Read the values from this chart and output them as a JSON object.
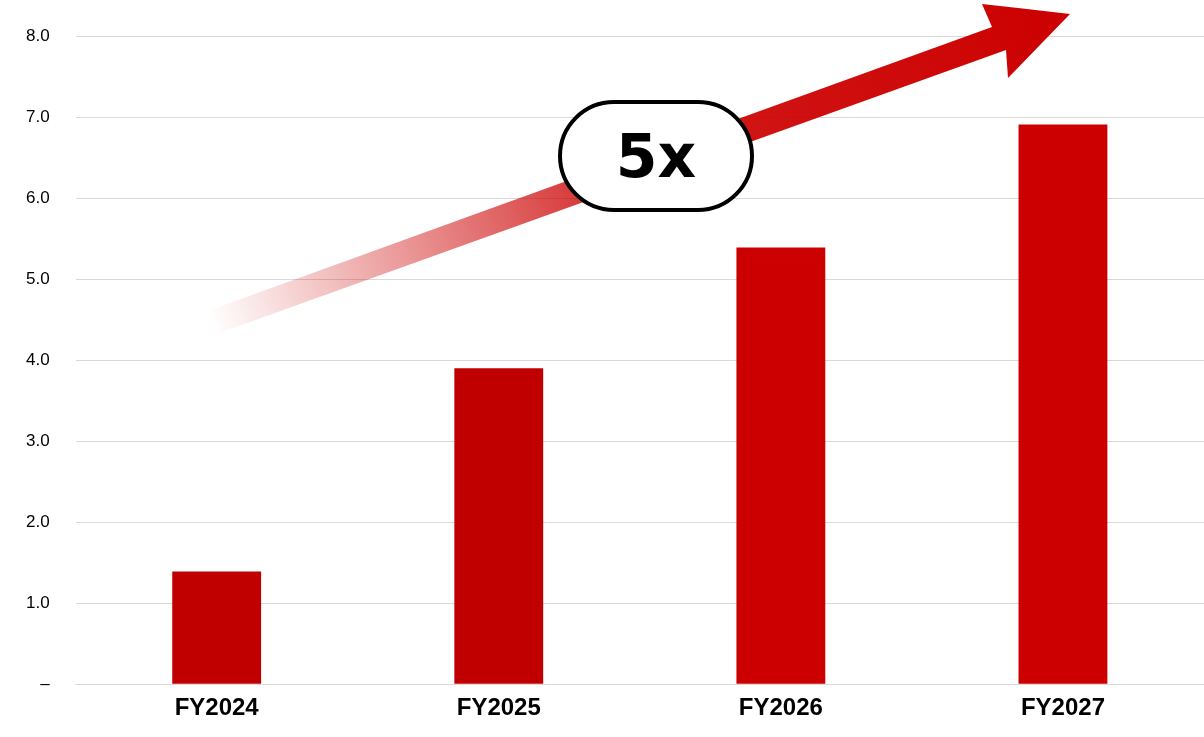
{
  "chart_data": {
    "type": "bar",
    "categories": [
      "FY2024",
      "FY2025",
      "FY2026",
      "FY2027"
    ],
    "values": [
      1.39,
      3.9,
      5.39,
      6.91
    ],
    "colors": [
      "#c00000",
      "#c00000",
      "#cc0000",
      "#cc0000"
    ],
    "ylim": [
      0,
      8
    ],
    "yticks": [
      {
        "value": 0,
        "label": "–"
      },
      {
        "value": 1,
        "label": "1.0"
      },
      {
        "value": 2,
        "label": "2.0"
      },
      {
        "value": 3,
        "label": "3.0"
      },
      {
        "value": 4,
        "label": "4.0"
      },
      {
        "value": 5,
        "label": "5.0"
      },
      {
        "value": 6,
        "label": "6.0"
      },
      {
        "value": 7,
        "label": "7.0"
      },
      {
        "value": 8,
        "label": "8.0"
      }
    ],
    "grid": "y",
    "legend": false,
    "annotations": [
      "5x"
    ]
  }
}
